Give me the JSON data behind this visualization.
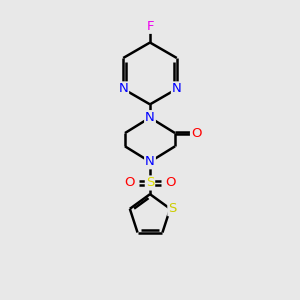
{
  "bg_color": "#e8e8e8",
  "bond_color": "#000000",
  "N_color": "#0000ff",
  "O_color": "#ff0000",
  "F_color": "#ee00ee",
  "S_sulfonyl_color": "#dddd00",
  "S_thiophene_color": "#cccc00",
  "line_width": 1.8,
  "fig_size": [
    3.0,
    3.0
  ],
  "dpi": 100,
  "xlim": [
    0,
    10
  ],
  "ylim": [
    0,
    10
  ]
}
